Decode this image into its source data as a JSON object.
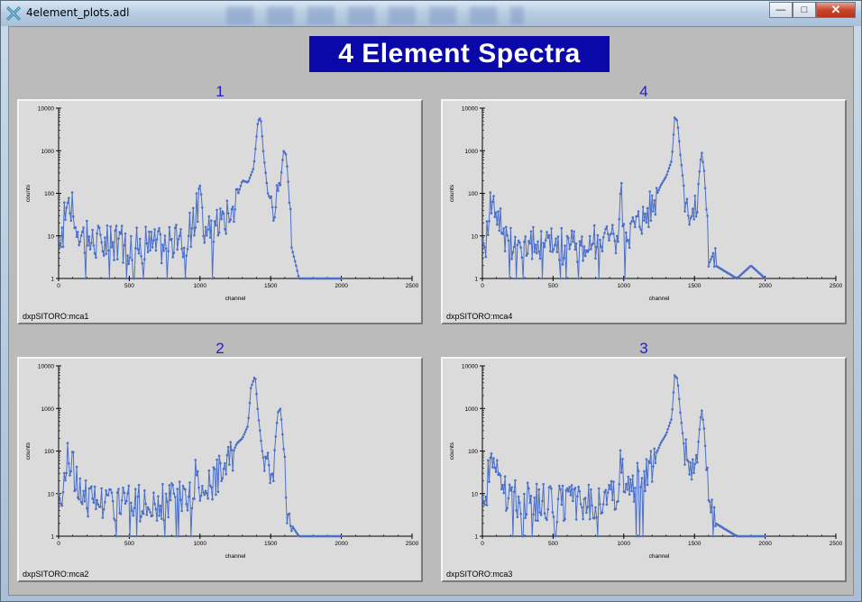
{
  "window": {
    "title": "4element_plots.adl",
    "buttons": {
      "minimize": "—",
      "maximize": "□",
      "close": "✕"
    },
    "colors": {
      "client_bg": "#bbbbbb",
      "banner_bg": "#0a08a8",
      "plot_line": "#4b6fc8"
    }
  },
  "display": {
    "title": "4 Element Spectra"
  },
  "plots": [
    {
      "number": "1",
      "pv": "dxpSITORO:mca1",
      "xlabel": "channel",
      "ylabel": "counts"
    },
    {
      "number": "4",
      "pv": "dxpSITORO:mca4",
      "xlabel": "channel",
      "ylabel": "counts"
    },
    {
      "number": "2",
      "pv": "dxpSITORO:mca2",
      "xlabel": "channel",
      "ylabel": "counts"
    },
    {
      "number": "3",
      "pv": "dxpSITORO:mca3",
      "xlabel": "channel",
      "ylabel": "counts"
    }
  ],
  "chart_data": [
    {
      "type": "line",
      "yscale": "log",
      "xlim": [
        0,
        2500
      ],
      "ylim": [
        1,
        10000
      ],
      "xticks": [
        "0",
        "500",
        "1000",
        "1500",
        "2000",
        "2500"
      ],
      "yticks": [
        "1",
        "10",
        "100",
        "1000",
        "10000"
      ],
      "series": [
        {
          "x": [
            0,
            20,
            50,
            80,
            120,
            160,
            200,
            300,
            500,
            700,
            900,
            980,
            1000,
            1020,
            1100,
            1200,
            1250,
            1300,
            1340,
            1380,
            1410,
            1430,
            1450,
            1480,
            1520,
            1560,
            1590,
            1610,
            1630,
            1650,
            1680,
            1700,
            1800,
            2000
          ],
          "y": [
            8,
            5,
            60,
            60,
            25,
            12,
            8,
            7,
            6,
            6,
            7,
            40,
            150,
            10,
            15,
            30,
            60,
            200,
            180,
            400,
            5000,
            6000,
            800,
            100,
            60,
            80,
            1000,
            800,
            100,
            5,
            2,
            1,
            1,
            1
          ]
        }
      ]
    },
    {
      "type": "line",
      "yscale": "log",
      "xlim": [
        0,
        2500
      ],
      "ylim": [
        1,
        10000
      ],
      "xticks": [
        "0",
        "500",
        "1000",
        "1500",
        "2000",
        "2500"
      ],
      "yticks": [
        "1",
        "10",
        "100",
        "1000",
        "10000"
      ],
      "series": [
        {
          "x": [
            0,
            20,
            50,
            80,
            120,
            160,
            200,
            300,
            500,
            700,
            900,
            960,
            980,
            1000,
            1100,
            1200,
            1260,
            1300,
            1340,
            1360,
            1380,
            1400,
            1430,
            1470,
            1510,
            1530,
            1550,
            1570,
            1600,
            1650,
            1800,
            1900,
            2000
          ],
          "y": [
            8,
            5,
            60,
            60,
            25,
            12,
            8,
            7,
            6,
            6,
            7,
            10,
            150,
            10,
            20,
            50,
            150,
            250,
            600,
            6000,
            5000,
            800,
            100,
            40,
            30,
            200,
            1000,
            300,
            5,
            2,
            1,
            2,
            1
          ]
        }
      ]
    },
    {
      "type": "line",
      "yscale": "log",
      "xlim": [
        0,
        2500
      ],
      "ylim": [
        1,
        10000
      ],
      "xticks": [
        "0",
        "500",
        "1000",
        "1500",
        "2000",
        "2500"
      ],
      "yticks": [
        "1",
        "10",
        "100",
        "1000",
        "10000"
      ],
      "series": [
        {
          "x": [
            0,
            20,
            50,
            80,
            120,
            160,
            200,
            300,
            500,
            700,
            900,
            960,
            980,
            1000,
            1100,
            1200,
            1260,
            1300,
            1340,
            1360,
            1390,
            1410,
            1440,
            1480,
            1520,
            1550,
            1570,
            1600,
            1620,
            1640,
            1700,
            1800,
            2000
          ],
          "y": [
            10,
            5,
            60,
            60,
            25,
            12,
            8,
            7,
            6,
            6,
            7,
            10,
            120,
            10,
            20,
            50,
            150,
            200,
            400,
            3000,
            6000,
            800,
            100,
            40,
            50,
            800,
            1000,
            50,
            3,
            2,
            1,
            1,
            1
          ]
        }
      ]
    },
    {
      "type": "line",
      "yscale": "log",
      "xlim": [
        0,
        2500
      ],
      "ylim": [
        1,
        10000
      ],
      "xticks": [
        "0",
        "500",
        "1000",
        "1500",
        "2000",
        "2500"
      ],
      "yticks": [
        "1",
        "10",
        "100",
        "1000",
        "10000"
      ],
      "series": [
        {
          "x": [
            0,
            20,
            50,
            80,
            120,
            160,
            200,
            300,
            500,
            700,
            900,
            960,
            980,
            1000,
            1100,
            1200,
            1260,
            1300,
            1340,
            1360,
            1380,
            1400,
            1430,
            1470,
            1510,
            1530,
            1550,
            1570,
            1600,
            1650,
            1800,
            2000
          ],
          "y": [
            8,
            5,
            60,
            60,
            25,
            12,
            8,
            7,
            6,
            6,
            7,
            10,
            150,
            10,
            20,
            50,
            150,
            250,
            600,
            6000,
            5000,
            800,
            100,
            40,
            30,
            200,
            1000,
            300,
            5,
            2,
            1,
            1
          ]
        }
      ]
    }
  ]
}
